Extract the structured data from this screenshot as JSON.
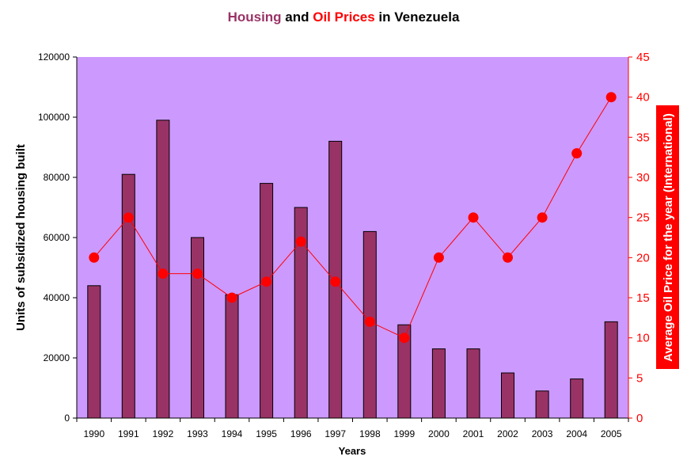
{
  "chart_data": {
    "type": "bar+line",
    "title_parts": [
      {
        "text": "Housing",
        "color": "#993366"
      },
      {
        "text": " and ",
        "color": "#000000"
      },
      {
        "text": "Oil Prices",
        "color": "#ff0000"
      },
      {
        "text": " in Venezuela",
        "color": "#000000"
      }
    ],
    "xlabel": "Years",
    "ylabel": "Units of subsidized housing built",
    "y2label": "Average Oil Price for the year (International)",
    "categories": [
      "1990",
      "1991",
      "1992",
      "1993",
      "1994",
      "1995",
      "1996",
      "1997",
      "1998",
      "1999",
      "2000",
      "2001",
      "2002",
      "2003",
      "2004",
      "2005"
    ],
    "series": [
      {
        "type": "bar",
        "axis": "left",
        "values": [
          44000,
          81000,
          99000,
          60000,
          41000,
          78000,
          70000,
          92000,
          62000,
          31000,
          23000,
          23000,
          15000,
          9000,
          13000,
          32000
        ]
      },
      {
        "type": "line",
        "axis": "right",
        "values": [
          20,
          25,
          18,
          18,
          15,
          17,
          22,
          17,
          12,
          10,
          20,
          25,
          20,
          25,
          33,
          40
        ]
      }
    ],
    "ylim": [
      0,
      120000
    ],
    "yticks": [
      "0",
      "20000",
      "40000",
      "60000",
      "80000",
      "100000",
      "120000"
    ],
    "y2lim": [
      0,
      45
    ],
    "y2ticks": [
      "0",
      "5",
      "10",
      "15",
      "20",
      "25",
      "30",
      "35",
      "40",
      "45"
    ],
    "grid": false,
    "legend": "none"
  },
  "colors": {
    "plot_background": "#cc99ff",
    "bar_fill": "#993366",
    "line_color": "#ff0000",
    "marker_color": "#ff0000",
    "right_axis_color": "#ff0000",
    "right_label_background": "#ff0000"
  }
}
